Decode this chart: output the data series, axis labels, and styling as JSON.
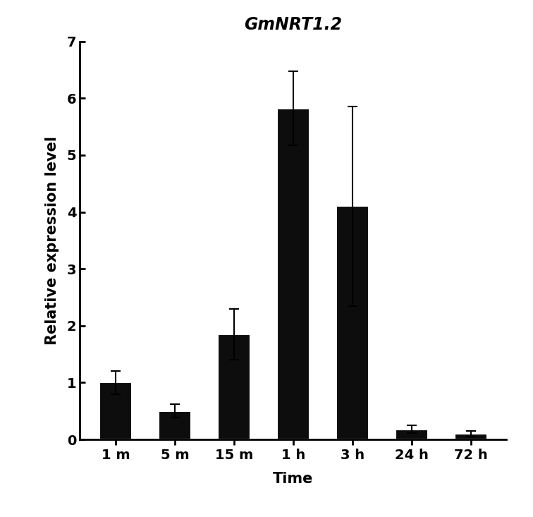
{
  "title": "GmNRT1.2",
  "xlabel": "Time",
  "ylabel": "Relative expression level",
  "categories": [
    "1 m",
    "5 m",
    "15 m",
    "1 h",
    "3 h",
    "24 h",
    "72 h"
  ],
  "values": [
    1.0,
    0.5,
    1.85,
    5.82,
    4.1,
    0.18,
    0.1
  ],
  "errors_upper": [
    0.2,
    0.12,
    0.45,
    0.65,
    1.75,
    0.07,
    0.05
  ],
  "errors_lower": [
    0.2,
    0.12,
    0.45,
    0.65,
    1.75,
    0.07,
    0.05
  ],
  "bar_color": "#0d0d0d",
  "bar_edgecolor": "#ffffff",
  "bar_edgewidth": 1.5,
  "background_color": "#ffffff",
  "ylim": [
    0,
    7
  ],
  "yticks": [
    0,
    1,
    2,
    3,
    4,
    5,
    6,
    7
  ],
  "title_fontsize": 17,
  "axis_label_fontsize": 15,
  "tick_label_fontsize": 14,
  "bar_width": 0.55,
  "figsize": [
    7.56,
    7.33
  ],
  "dpi": 100
}
